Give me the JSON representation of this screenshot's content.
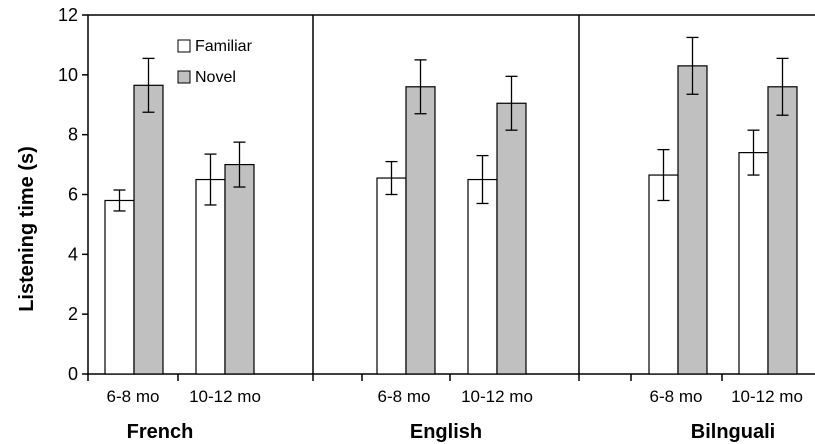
{
  "chart_data": {
    "type": "bar",
    "ylabel": "Listening time (s)",
    "ylim": [
      0,
      12
    ],
    "yticks": [
      0,
      2,
      4,
      6,
      8,
      10,
      12
    ],
    "grid": false,
    "legend_position": "top-left",
    "groups": [
      {
        "name": "French",
        "categories": [
          "6-8 mo",
          "10-12 mo"
        ]
      },
      {
        "name": "English",
        "categories": [
          "6-8 mo",
          "10-12 mo"
        ]
      },
      {
        "name": "Bilnguali",
        "categories": [
          "6-8 mo",
          "10-12 mo"
        ]
      }
    ],
    "series": [
      {
        "name": "Familiar",
        "color": "#ffffff",
        "values": [
          5.8,
          6.5,
          6.55,
          6.5,
          6.65,
          7.4
        ],
        "errors": [
          0.35,
          0.85,
          0.55,
          0.8,
          0.85,
          0.75
        ]
      },
      {
        "name": "Novel",
        "color": "#c0c0c0",
        "values": [
          9.65,
          7.0,
          9.6,
          9.05,
          10.3,
          9.6
        ],
        "errors": [
          0.9,
          0.75,
          0.9,
          0.9,
          0.95,
          0.95
        ]
      }
    ]
  }
}
